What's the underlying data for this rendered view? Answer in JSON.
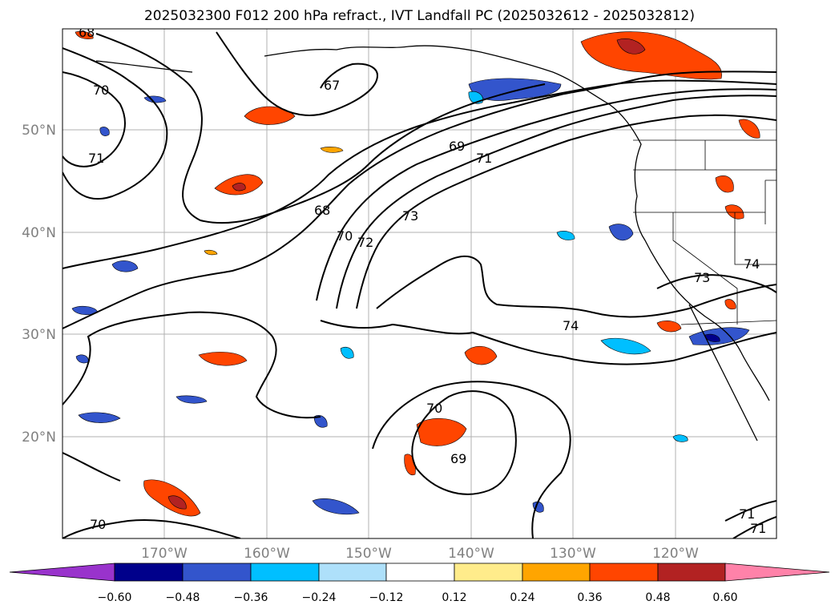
{
  "title": "2025032300 F012 200 hPa refract., IVT Landfall PC (2025032612 - 2025032812)",
  "longitude_labels": [
    "170°W",
    "160°W",
    "150°W",
    "140°W",
    "130°W",
    "120°W"
  ],
  "latitude_labels": [
    "50°N",
    "40°N",
    "30°N",
    "20°N"
  ],
  "colorbar": {
    "tick_labels": [
      "−0.60",
      "−0.48",
      "−0.36",
      "−0.24",
      "−0.12",
      "0.12",
      "0.24",
      "0.36",
      "0.48",
      "0.60"
    ],
    "colors": [
      "#9933cc",
      "#00008b",
      "#3355cc",
      "#00bfff",
      "#aee0fa",
      "#ffffff",
      "#ffec8b",
      "#ffa500",
      "#ff4500",
      "#b22222",
      "#ff82a9"
    ]
  },
  "contour_labels": [
    "68",
    "70",
    "71",
    "67",
    "69",
    "71",
    "68",
    "73",
    "70",
    "72",
    "74",
    "73",
    "74",
    "70",
    "69",
    "70",
    "71",
    "71"
  ],
  "colors": {
    "gridline": "#b0b0b0",
    "contour": "#000000",
    "axis_text": "#808080"
  }
}
